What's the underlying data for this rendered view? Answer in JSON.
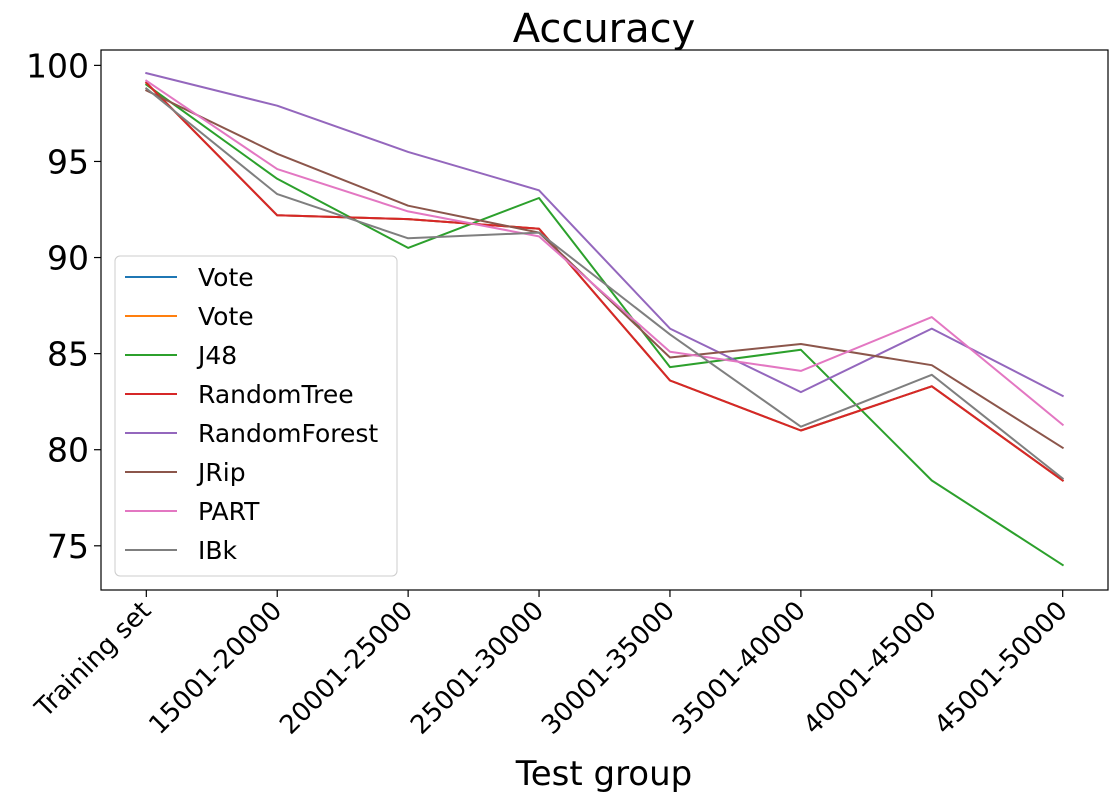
{
  "chart_data": {
    "type": "line",
    "title": "Accuracy",
    "xlabel": "Test group",
    "ylabel": "",
    "categories": [
      "Training set",
      "15001-20000",
      "20001-25000",
      "25001-30000",
      "30001-35000",
      "35001-40000",
      "40001-45000",
      "45001-50000"
    ],
    "ylim": [
      72.7,
      100.8
    ],
    "yticks": [
      75,
      80,
      85,
      90,
      95,
      100
    ],
    "grid": false,
    "legend_position": "lower-left",
    "series": [
      {
        "name": "Vote",
        "color": "#1f77b4",
        "values": [
          99.1,
          92.2,
          92.0,
          91.5,
          83.6,
          81.0,
          83.3,
          78.4
        ]
      },
      {
        "name": "Vote",
        "color": "#ff7f0e",
        "values": [
          99.1,
          92.2,
          92.0,
          91.5,
          83.6,
          81.0,
          83.3,
          78.4
        ]
      },
      {
        "name": "J48",
        "color": "#2ca02c",
        "values": [
          99.0,
          94.1,
          90.5,
          93.1,
          84.3,
          85.2,
          78.4,
          74.0
        ]
      },
      {
        "name": "RandomTree",
        "color": "#d62728",
        "values": [
          99.1,
          92.2,
          92.0,
          91.5,
          83.6,
          81.0,
          83.3,
          78.4
        ]
      },
      {
        "name": "RandomForest",
        "color": "#9467bd",
        "values": [
          99.6,
          97.9,
          95.5,
          93.5,
          86.3,
          83.0,
          86.3,
          82.8
        ]
      },
      {
        "name": "JRip",
        "color": "#8c564b",
        "values": [
          98.7,
          95.4,
          92.7,
          91.3,
          84.8,
          85.5,
          84.4,
          80.1
        ]
      },
      {
        "name": "PART",
        "color": "#e377c2",
        "values": [
          99.2,
          94.6,
          92.4,
          91.1,
          85.1,
          84.1,
          86.9,
          81.3
        ]
      },
      {
        "name": "IBk",
        "color": "#7f7f7f",
        "values": [
          98.8,
          93.3,
          91.0,
          91.3,
          86.0,
          81.2,
          83.9,
          78.5
        ]
      }
    ]
  }
}
